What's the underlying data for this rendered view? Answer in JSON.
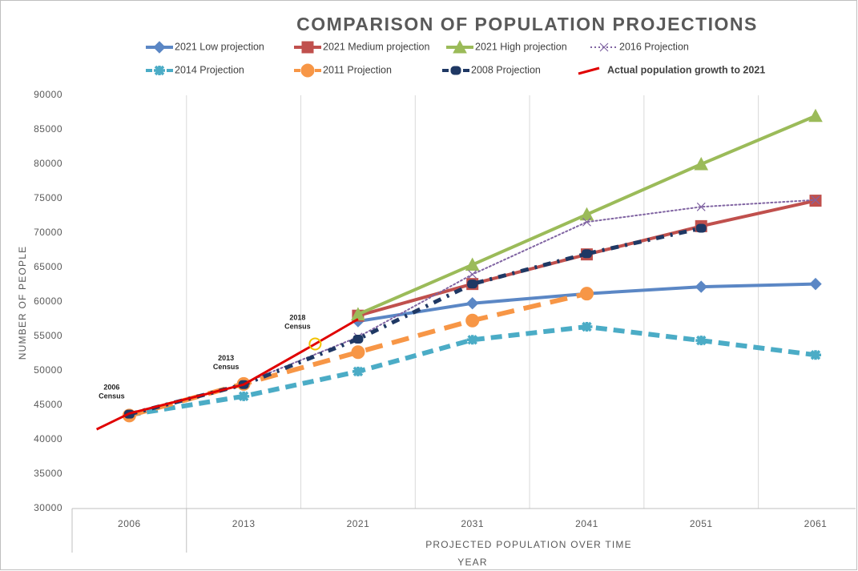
{
  "chart_data": {
    "type": "line",
    "title": "COMPARISON OF POPULATION PROJECTIONS",
    "x_label": "PROJECTED POPULATION OVER TIME",
    "x_label_2": "YEAR",
    "y_label": "NUMBER OF PEOPLE",
    "categories": [
      "2006",
      "2013",
      "2021",
      "2031",
      "2041",
      "2051",
      "2061"
    ],
    "ylim": [
      30000,
      90000
    ],
    "yticks": [
      30000,
      35000,
      40000,
      45000,
      50000,
      55000,
      60000,
      65000,
      70000,
      75000,
      80000,
      85000,
      90000
    ],
    "grid": "vertical",
    "series": [
      {
        "name": "2021 Low projection",
        "color": "#5b87c5",
        "dash": "solid",
        "marker": "diamond",
        "values": [
          null,
          null,
          57200,
          59800,
          61200,
          62200,
          62600
        ]
      },
      {
        "name": "2021 Medium projection",
        "color": "#c0504d",
        "dash": "solid",
        "marker": "square",
        "values": [
          null,
          null,
          58000,
          62600,
          66900,
          71000,
          74700
        ]
      },
      {
        "name": "2021 High projection",
        "color": "#9bbb59",
        "dash": "solid",
        "marker": "triangle",
        "values": [
          null,
          null,
          58200,
          65400,
          72700,
          80000,
          87000
        ]
      },
      {
        "name": "2016 Projection",
        "color": "#8064a2",
        "dash": "dotted",
        "marker": "cross",
        "values": [
          null,
          48200,
          54900,
          64000,
          71600,
          73800,
          74800
        ]
      },
      {
        "name": "2014 Projection",
        "color": "#4bacc6",
        "dash": "dashed",
        "marker": "star",
        "values": [
          43600,
          46300,
          49900,
          54500,
          56400,
          54400,
          52300
        ]
      },
      {
        "name": "2011 Projection",
        "color": "#f79646",
        "dash": "longdash",
        "marker": "circle",
        "values": [
          43500,
          48100,
          52700,
          57300,
          61200,
          null,
          null
        ]
      },
      {
        "name": "2008 Projection",
        "color": "#1f3864",
        "dash": "dashdot",
        "marker": "dash",
        "values": [
          43700,
          48000,
          54600,
          62600,
          67000,
          70700,
          null
        ]
      },
      {
        "name": "Actual population growth to 2021",
        "color": "#e00000",
        "dash": "solid",
        "marker": "none",
        "x": [
          2004,
          2006,
          2013,
          2018,
          2021
        ],
        "values": [
          41500,
          43800,
          48000,
          53900,
          57500
        ]
      }
    ],
    "annotations": [
      {
        "text": [
          "2006",
          "Census"
        ],
        "x": 2006,
        "value": 43800
      },
      {
        "text": [
          "2013",
          "Census"
        ],
        "x": 2013,
        "value": 48000
      },
      {
        "text": [
          "2018",
          "Census"
        ],
        "x": 2018,
        "value": 53900,
        "circle_color": "#f2c200"
      }
    ]
  }
}
